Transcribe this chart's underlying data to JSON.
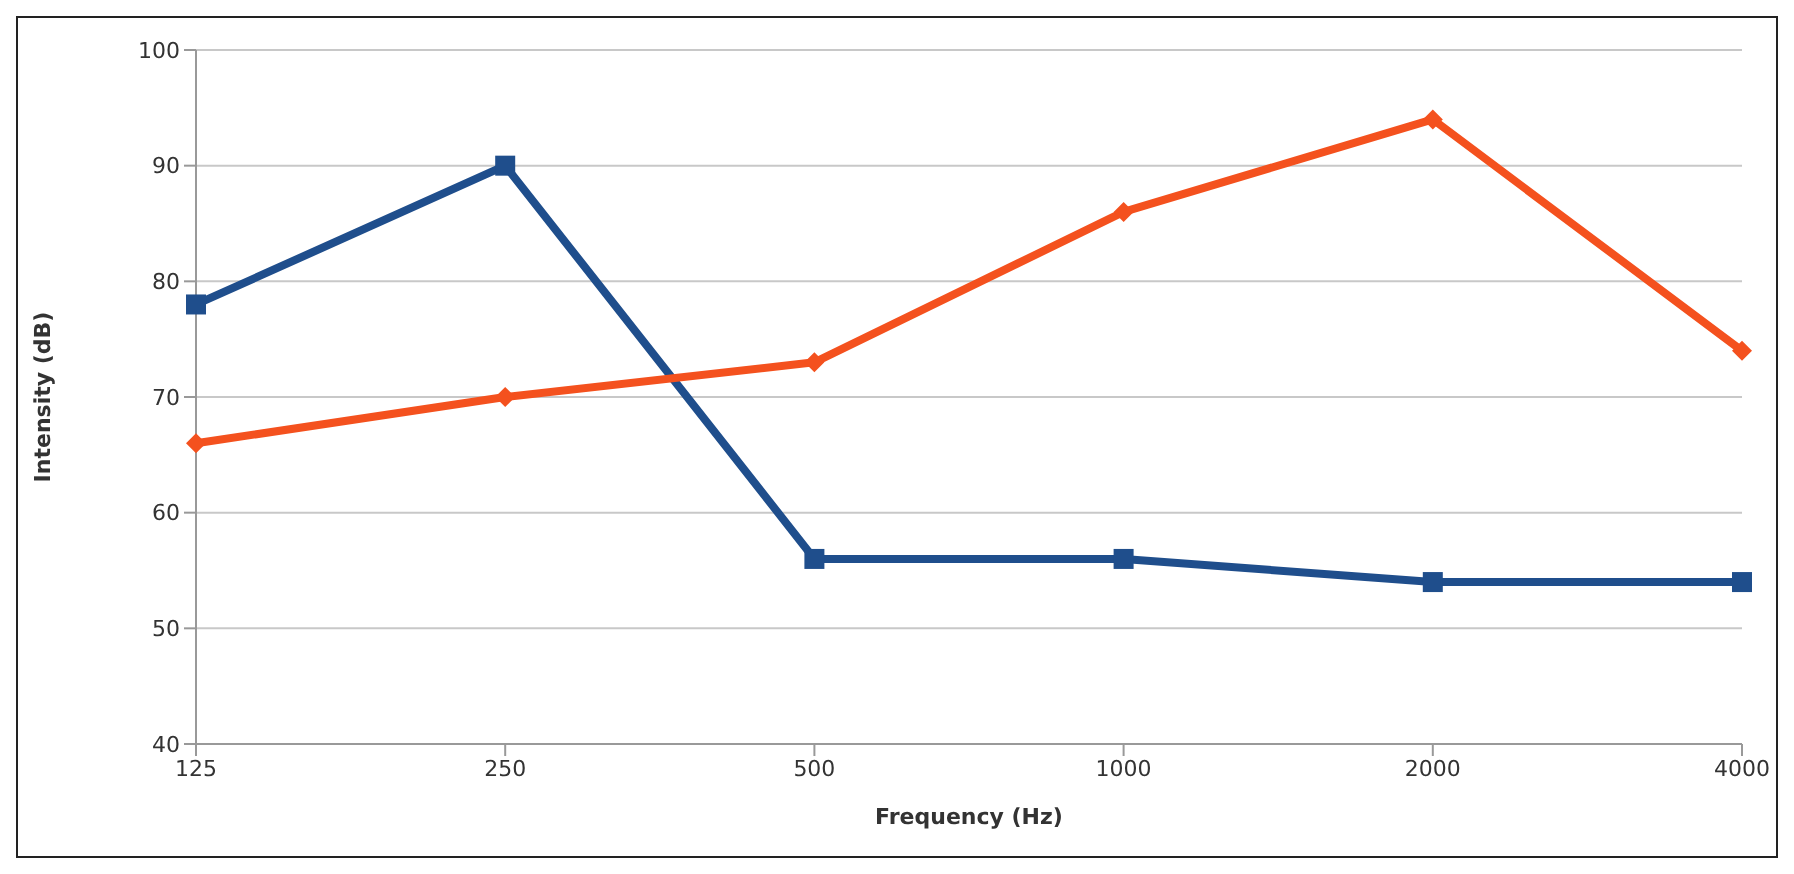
{
  "chart_data": {
    "type": "line",
    "xlabel": "Frequency (Hz)",
    "ylabel": "Intensity (dB)",
    "categories": [
      "125",
      "250",
      "500",
      "1000",
      "2000",
      "4000"
    ],
    "series": [
      {
        "color": "#1f4e8c",
        "marker": "square",
        "values": [
          78,
          90,
          56,
          56,
          54,
          54
        ]
      },
      {
        "color": "#f4511e",
        "marker": "diamond",
        "values": [
          66,
          70,
          73,
          86,
          94,
          74
        ]
      }
    ],
    "ylim": [
      40,
      100
    ],
    "yticks": [
      40,
      50,
      60,
      70,
      80,
      90,
      100
    ],
    "grid": "y",
    "legend": false
  }
}
